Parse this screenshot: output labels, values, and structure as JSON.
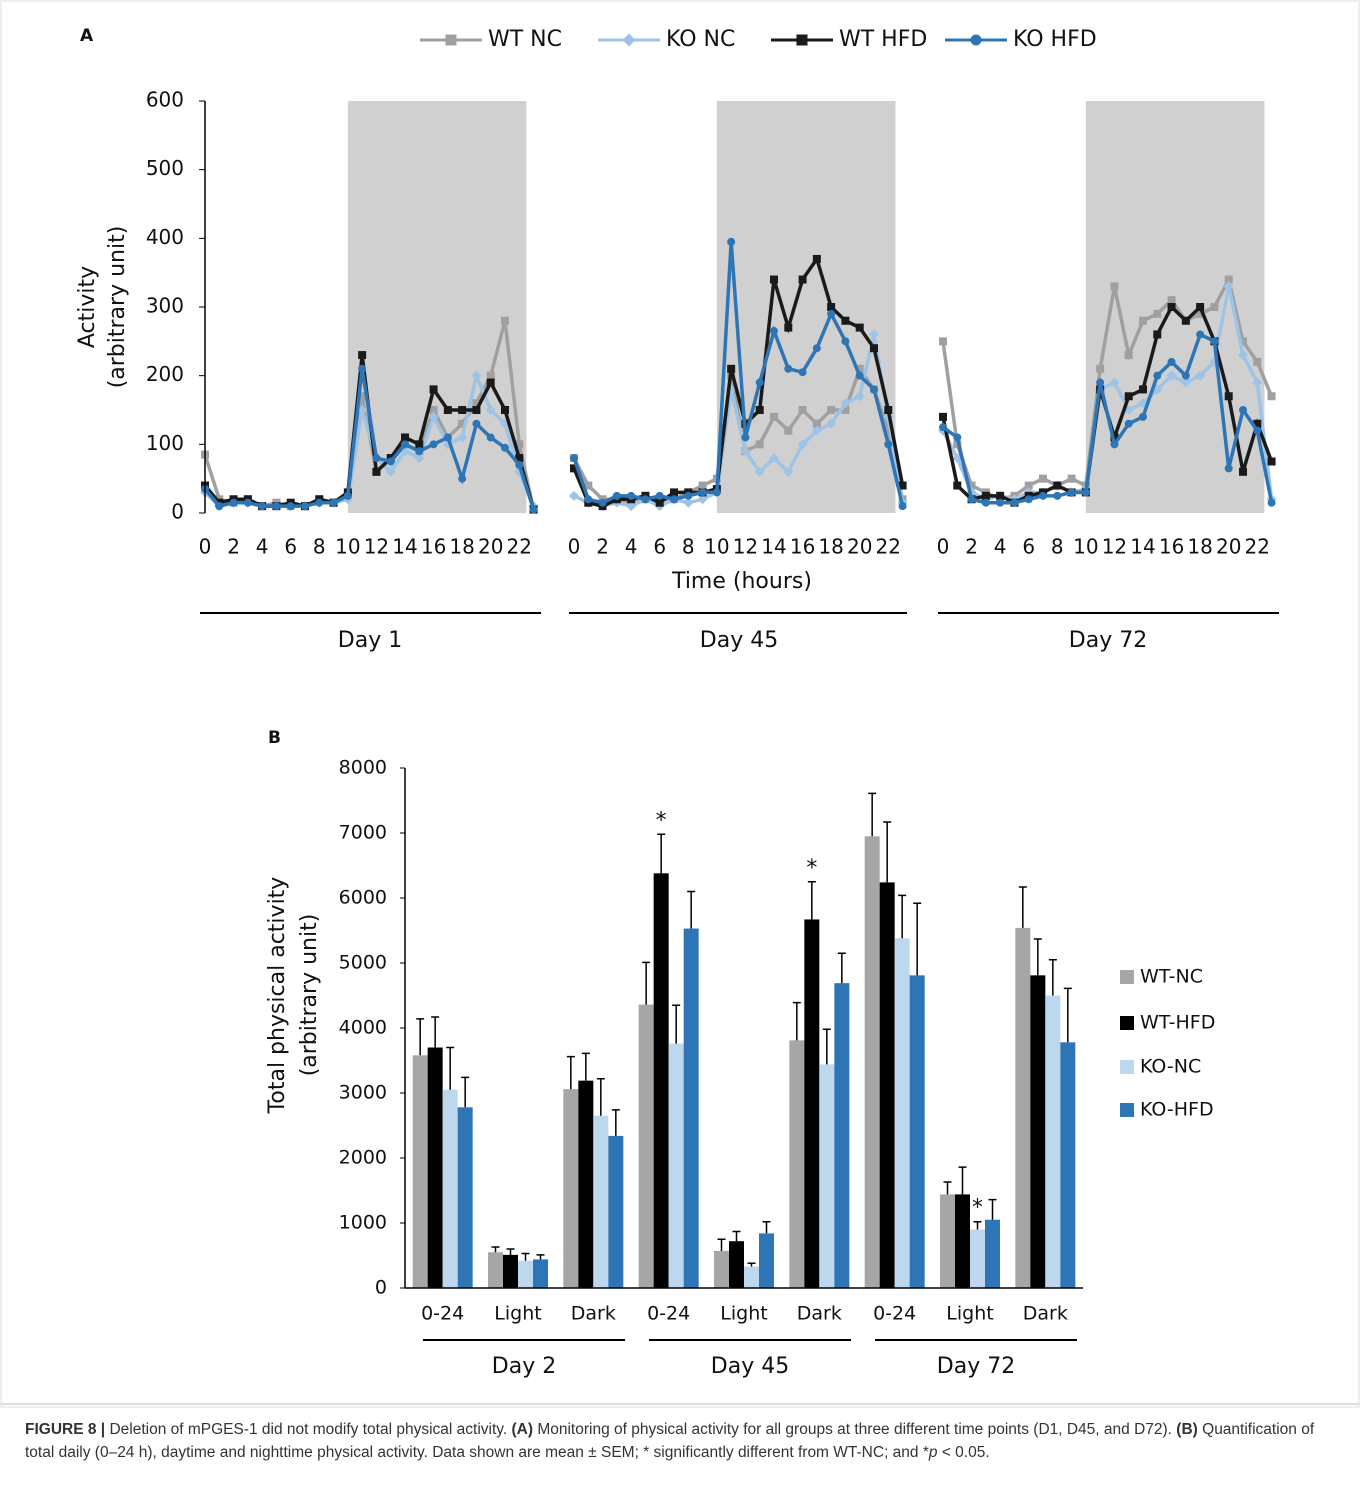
{
  "chart_data": [
    {
      "type": "line",
      "panel_label": "A",
      "series": [
        {
          "name": "WT NC",
          "color": "#a0a0a0",
          "marker": "square"
        },
        {
          "name": "KO NC",
          "color": "#9dc3e6",
          "marker": "diamond"
        },
        {
          "name": "WT HFD",
          "color": "#1a1a1a",
          "marker": "square"
        },
        {
          "name": "KO HFD",
          "color": "#2e75b6",
          "marker": "circle"
        }
      ],
      "ylabel": [
        "Activity",
        "(arbitrary unit)"
      ],
      "xlabel": "Time (hours)",
      "ylim": [
        0,
        600
      ],
      "yticks": [
        0,
        100,
        200,
        300,
        400,
        500,
        600
      ],
      "xlim": [
        -0.35,
        23.8
      ],
      "xticks": [
        0,
        2,
        4,
        6,
        8,
        10,
        12,
        14,
        16,
        18,
        20,
        22
      ],
      "x": [
        0,
        1,
        2,
        3,
        4,
        5,
        6,
        7,
        8,
        9,
        10,
        11,
        12,
        13,
        14,
        15,
        16,
        17,
        18,
        19,
        20,
        21,
        22,
        23
      ],
      "panels": [
        {
          "label": "Day 1",
          "shade": [
            10,
            22.5
          ],
          "values": [
            [
              85,
              20,
              15,
              20,
              10,
              15,
              10,
              10,
              20,
              15,
              25,
              170,
              60,
              80,
              100,
              90,
              150,
              110,
              130,
              160,
              200,
              280,
              100,
              5
            ],
            [
              30,
              10,
              15,
              15,
              10,
              10,
              10,
              10,
              15,
              15,
              20,
              150,
              80,
              60,
              90,
              80,
              140,
              100,
              110,
              200,
              150,
              130,
              60,
              10
            ],
            [
              40,
              15,
              20,
              20,
              10,
              10,
              15,
              10,
              20,
              15,
              30,
              230,
              60,
              80,
              110,
              100,
              180,
              150,
              150,
              150,
              190,
              150,
              80,
              5
            ],
            [
              35,
              10,
              15,
              15,
              10,
              10,
              10,
              10,
              15,
              15,
              25,
              210,
              80,
              75,
              100,
              90,
              100,
              110,
              50,
              130,
              110,
              95,
              70,
              5
            ]
          ]
        },
        {
          "label": "Day 45",
          "shade": [
            10,
            22.5
          ],
          "values": [
            [
              80,
              40,
              20,
              20,
              15,
              20,
              20,
              20,
              30,
              40,
              50,
              200,
              90,
              100,
              140,
              120,
              150,
              130,
              150,
              150,
              210,
              180,
              120,
              20
            ],
            [
              25,
              15,
              10,
              15,
              10,
              20,
              10,
              20,
              15,
              20,
              30,
              180,
              90,
              60,
              80,
              60,
              100,
              120,
              130,
              160,
              170,
              260,
              140,
              15
            ],
            [
              65,
              15,
              10,
              20,
              20,
              25,
              15,
              30,
              30,
              30,
              35,
              210,
              130,
              150,
              340,
              270,
              340,
              370,
              300,
              280,
              270,
              240,
              150,
              40
            ],
            [
              80,
              20,
              15,
              25,
              25,
              20,
              25,
              20,
              25,
              30,
              30,
              395,
              110,
              190,
              265,
              210,
              205,
              240,
              290,
              250,
              200,
              180,
              100,
              10
            ]
          ]
        },
        {
          "label": "Day 72",
          "shade": [
            10,
            22.5
          ],
          "values": [
            [
              250,
              100,
              40,
              30,
              20,
              25,
              40,
              50,
              40,
              50,
              40,
              210,
              330,
              230,
              280,
              290,
              310,
              280,
              290,
              300,
              340,
              250,
              220,
              170
            ],
            [
              120,
              80,
              30,
              20,
              25,
              20,
              30,
              30,
              40,
              30,
              35,
              180,
              190,
              150,
              160,
              180,
              200,
              190,
              200,
              220,
              330,
              230,
              190,
              20
            ],
            [
              140,
              40,
              20,
              25,
              25,
              15,
              25,
              30,
              40,
              30,
              30,
              180,
              110,
              170,
              180,
              260,
              300,
              280,
              300,
              250,
              170,
              60,
              130,
              75
            ],
            [
              125,
              110,
              20,
              15,
              15,
              15,
              20,
              25,
              25,
              30,
              30,
              190,
              100,
              130,
              140,
              200,
              220,
              200,
              260,
              250,
              65,
              150,
              120,
              15
            ]
          ]
        }
      ]
    },
    {
      "type": "bar",
      "panel_label": "B",
      "ylabel": [
        "Total physical activity",
        "(arbitrary unit)"
      ],
      "ylim": [
        0,
        8000
      ],
      "yticks": [
        0,
        1000,
        2000,
        3000,
        4000,
        5000,
        6000,
        7000,
        8000
      ],
      "categories": [
        "0-24",
        "Light",
        "Dark",
        "0-24",
        "Light",
        "Dark",
        "0-24",
        "Light",
        "Dark"
      ],
      "groups": [
        "Day 2",
        "Day 45",
        "Day 72"
      ],
      "series": [
        {
          "name": "WT-NC",
          "color": "#a6a6a6",
          "values": [
            3580,
            550,
            3060,
            4360,
            570,
            3810,
            6950,
            1440,
            5540
          ],
          "errors": [
            560,
            80,
            500,
            650,
            180,
            580,
            660,
            190,
            630
          ],
          "annotations": [
            null,
            null,
            null,
            null,
            null,
            null,
            null,
            null,
            null
          ]
        },
        {
          "name": "WT-HFD",
          "color": "#000000",
          "values": [
            3700,
            510,
            3190,
            6380,
            720,
            5670,
            6240,
            1440,
            4810
          ],
          "errors": [
            470,
            90,
            420,
            600,
            150,
            580,
            930,
            420,
            560
          ],
          "annotations": [
            null,
            null,
            null,
            "*",
            null,
            "*",
            null,
            null,
            null
          ]
        },
        {
          "name": "KO-NC",
          "color": "#bdd7ee",
          "values": [
            3050,
            420,
            2650,
            3760,
            330,
            3440,
            5380,
            900,
            4500
          ],
          "errors": [
            650,
            110,
            570,
            590,
            50,
            540,
            660,
            120,
            550
          ],
          "annotations": [
            null,
            null,
            null,
            null,
            null,
            null,
            null,
            "*",
            null
          ]
        },
        {
          "name": "KO-HFD",
          "color": "#2e75b6",
          "values": [
            2780,
            440,
            2340,
            5530,
            840,
            4690,
            4810,
            1050,
            3780
          ],
          "errors": [
            460,
            70,
            400,
            570,
            180,
            460,
            1110,
            310,
            830
          ],
          "annotations": [
            null,
            null,
            null,
            null,
            null,
            null,
            null,
            null,
            null
          ]
        }
      ]
    }
  ],
  "caption": {
    "segments": [
      {
        "text": "FIGURE 8 |",
        "bold": true
      },
      {
        "text": " Deletion of mPGES-1 did not modify total physical activity. "
      },
      {
        "text": "(A)",
        "bold": true
      },
      {
        "text": " Monitoring of physical activity for all groups at three different time points (D1, D45, and D72). "
      },
      {
        "text": "(B)",
        "bold": true
      },
      {
        "text": " Quantification of total daily (0–24 h), daytime and nighttime physical activity. Data shown are mean ± SEM; * significantly different from WT-NC; and *"
      },
      {
        "text": "p",
        "italic": true
      },
      {
        "text": " < 0.05."
      }
    ]
  }
}
